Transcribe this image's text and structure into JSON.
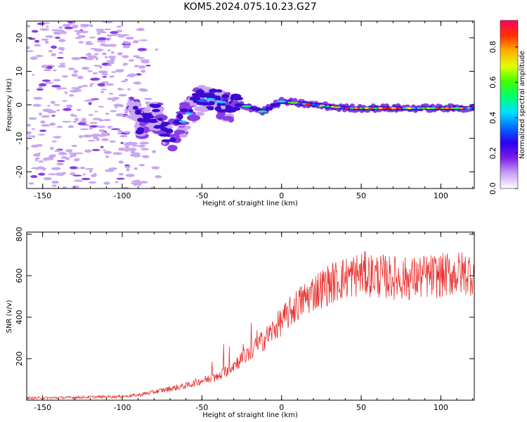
{
  "title": "KOM5.2024.075.10.23.G27",
  "colors": {
    "snr_line": "#e8312e",
    "blob_light": "#c9a6f2",
    "blob_mid": "#8a3ee6",
    "blob_dark": "#3b0ad1"
  },
  "chart_data": [
    {
      "type": "heatmap",
      "xlabel": "Height of straight line (km)",
      "ylabel": "Frequency (Hz)",
      "xlim": [
        -160,
        121
      ],
      "ylim": [
        -25,
        25
      ],
      "xticks": [
        "-150",
        "-100",
        "-50",
        "0",
        "50",
        "100"
      ],
      "yticks": [
        "-20",
        "-10",
        "0",
        "10",
        "20"
      ],
      "colorbar": {
        "label": "Normalized spectral amplitude",
        "range": [
          0,
          0.95
        ],
        "ticks": [
          "0.0",
          "0.2",
          "0.4",
          "0.6",
          "0.8"
        ],
        "colors": [
          "#ffffff",
          "#c8a0f5",
          "#7b1ee6",
          "#2a00f0",
          "#0070ff",
          "#00e0ff",
          "#00ff70",
          "#40ff00",
          "#e0ff00",
          "#ffb000",
          "#ff3000",
          "#ff0060"
        ]
      },
      "ridge": {
        "x": [
          -90,
          -80,
          -70,
          -62,
          -52,
          -42,
          -35,
          -25,
          -18,
          -12,
          -8,
          0,
          20,
          40,
          60,
          80,
          100,
          121
        ],
        "freq": [
          -6,
          -2,
          -10,
          -5,
          1,
          2,
          0,
          0,
          -1,
          -2,
          -1,
          1,
          0,
          -1,
          -1,
          -1,
          -1,
          -1
        ]
      }
    },
    {
      "type": "line",
      "xlabel": "Height of straight line (km)",
      "ylabel": "SNR (v/v)",
      "xlim": [
        -160,
        121
      ],
      "ylim": [
        0,
        810
      ],
      "xticks": [
        "-150",
        "-100",
        "-50",
        "0",
        "50",
        "100"
      ],
      "yticks": [
        "200",
        "400",
        "600",
        "800"
      ],
      "series": [
        {
          "x": [
            -160,
            -140,
            -120,
            -100,
            -90,
            -80,
            -70,
            -60,
            -50,
            -40,
            -30,
            -20,
            -10,
            0,
            10,
            20,
            30,
            40,
            50,
            60,
            70,
            80,
            90,
            100,
            110,
            121
          ],
          "y": [
            10,
            12,
            15,
            18,
            25,
            40,
            55,
            70,
            95,
            110,
            170,
            230,
            300,
            380,
            460,
            520,
            560,
            590,
            610,
            600,
            590,
            585,
            595,
            600,
            610,
            615
          ]
        }
      ]
    }
  ]
}
